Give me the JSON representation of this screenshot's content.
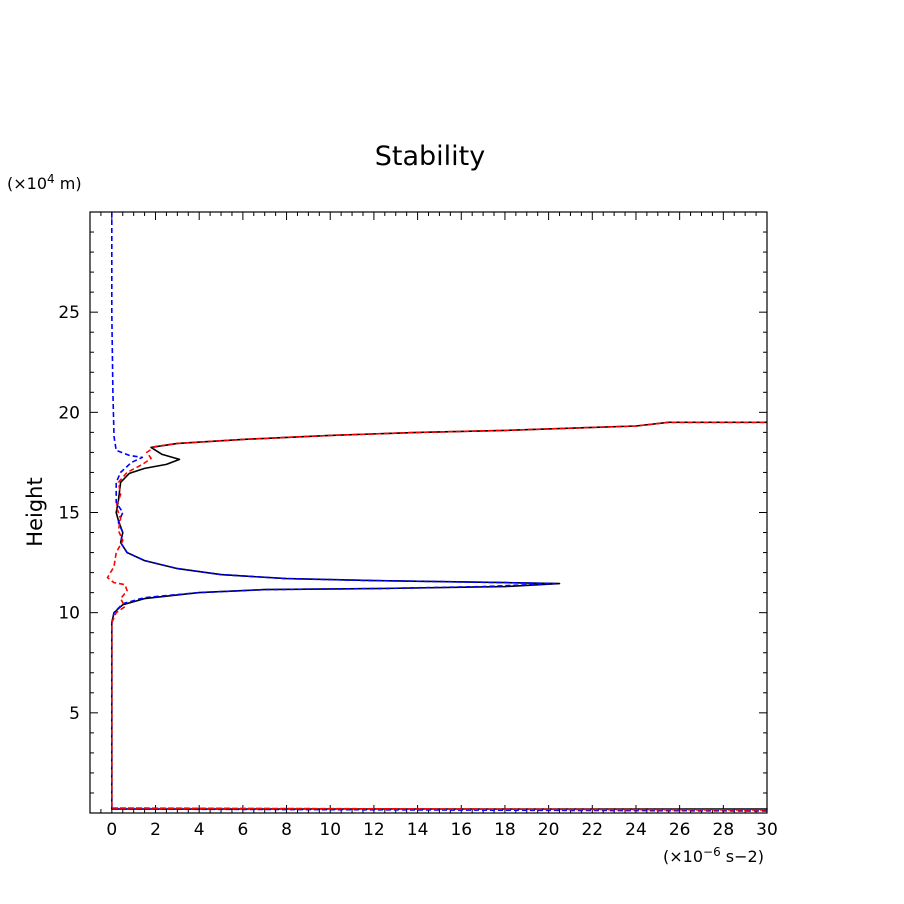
{
  "chart_data": {
    "type": "line",
    "title": "Stability",
    "ylabel": "Height",
    "xlabel": "",
    "x_unit_prefix": "(×10",
    "x_unit_exp": "−6",
    "x_unit_suffix": " s−2)",
    "y_unit_prefix": "(×10",
    "y_unit_exp": "4",
    "y_unit_suffix": " m)",
    "xlim": [
      -1,
      30
    ],
    "ylim": [
      0,
      30
    ],
    "x_ticks": [
      0,
      2,
      4,
      6,
      8,
      10,
      12,
      14,
      16,
      18,
      20,
      22,
      24,
      26,
      28,
      30
    ],
    "x_tick_labels": [
      "0",
      "2",
      "4",
      "6",
      "8",
      "10",
      "12",
      "14",
      "16",
      "18",
      "20",
      "22",
      "24",
      "26",
      "28",
      "30"
    ],
    "y_ticks": [
      5,
      10,
      15,
      20,
      25
    ],
    "y_tick_labels": [
      "5",
      "10",
      "15",
      "20",
      "25"
    ],
    "grid": false,
    "series": [
      {
        "color": "#000000",
        "style": "solid",
        "points": [
          [
            0.0,
            0.2
          ],
          [
            30,
            0.2
          ],
          [
            0.0,
            0.2
          ],
          [
            0.0,
            9.5
          ],
          [
            0.1,
            10.0
          ],
          [
            0.5,
            10.4
          ],
          [
            1.5,
            10.7
          ],
          [
            4,
            11.0
          ],
          [
            7,
            11.15
          ],
          [
            12,
            11.2
          ],
          [
            18,
            11.3
          ],
          [
            20.5,
            11.45
          ],
          [
            18,
            11.5
          ],
          [
            12,
            11.6
          ],
          [
            8,
            11.7
          ],
          [
            5,
            11.9
          ],
          [
            3,
            12.2
          ],
          [
            1.5,
            12.6
          ],
          [
            0.7,
            13.0
          ],
          [
            0.4,
            13.5
          ],
          [
            0.5,
            14.0
          ],
          [
            0.3,
            14.6
          ],
          [
            0.2,
            15.0
          ],
          [
            0.3,
            15.6
          ],
          [
            0.4,
            16.5
          ],
          [
            0.8,
            16.95
          ],
          [
            1.5,
            17.2
          ],
          [
            2.5,
            17.4
          ],
          [
            3.1,
            17.65
          ],
          [
            2.3,
            17.9
          ],
          [
            1.8,
            18.25
          ],
          [
            3,
            18.45
          ],
          [
            6,
            18.65
          ],
          [
            10,
            18.85
          ],
          [
            14,
            19.0
          ],
          [
            18,
            19.1
          ],
          [
            22,
            19.25
          ],
          [
            24,
            19.32
          ],
          [
            25.5,
            19.5
          ],
          [
            30,
            19.5
          ]
        ]
      },
      {
        "color": "#0000ff",
        "style": "dashed",
        "points": [
          [
            0.0,
            30.0
          ],
          [
            0.0,
            25.0
          ],
          [
            0.05,
            21.0
          ],
          [
            0.1,
            18.8
          ],
          [
            0.2,
            18.1
          ],
          [
            0.8,
            17.85
          ],
          [
            1.4,
            17.75
          ],
          [
            0.9,
            17.5
          ],
          [
            0.4,
            17.0
          ],
          [
            0.2,
            16.5
          ],
          [
            0.2,
            15.5
          ],
          [
            0.5,
            15.0
          ],
          [
            0.3,
            14.5
          ],
          [
            0.5,
            14.0
          ],
          [
            0.4,
            13.5
          ],
          [
            0.7,
            13.0
          ],
          [
            1.5,
            12.6
          ],
          [
            3,
            12.2
          ],
          [
            5,
            11.9
          ],
          [
            8,
            11.7
          ],
          [
            12,
            11.6
          ],
          [
            18,
            11.5
          ],
          [
            20.3,
            11.45
          ],
          [
            17,
            11.3
          ],
          [
            12,
            11.2
          ],
          [
            7,
            11.15
          ],
          [
            4,
            11.0
          ],
          [
            1.5,
            10.75
          ],
          [
            0.5,
            10.45
          ],
          [
            0.1,
            10.0
          ],
          [
            0.0,
            9.5
          ],
          [
            0.0,
            0.2
          ],
          [
            30,
            0.1
          ]
        ]
      },
      {
        "color": "#ff0000",
        "style": "dashed",
        "points": [
          [
            0.0,
            0.25
          ],
          [
            30,
            0.15
          ],
          [
            0.0,
            0.25
          ],
          [
            0.0,
            9.5
          ],
          [
            0.2,
            10.0
          ],
          [
            0.6,
            10.3
          ],
          [
            0.4,
            10.7
          ],
          [
            0.7,
            11.1
          ],
          [
            0.6,
            11.4
          ],
          [
            0.1,
            11.5
          ],
          [
            -0.2,
            11.75
          ],
          [
            0.1,
            12.3
          ],
          [
            0.2,
            13.0
          ],
          [
            0.5,
            13.6
          ],
          [
            0.3,
            14.1
          ],
          [
            0.4,
            14.7
          ],
          [
            0.2,
            15.3
          ],
          [
            0.4,
            15.9
          ],
          [
            0.3,
            16.5
          ],
          [
            0.7,
            17.0
          ],
          [
            1.4,
            17.4
          ],
          [
            1.8,
            17.7
          ],
          [
            1.6,
            18.0
          ],
          [
            2.0,
            18.3
          ],
          [
            3,
            18.45
          ],
          [
            6,
            18.65
          ],
          [
            10,
            18.85
          ],
          [
            14,
            19.0
          ],
          [
            18,
            19.1
          ],
          [
            22,
            19.25
          ],
          [
            24,
            19.32
          ],
          [
            25.5,
            19.5
          ],
          [
            30,
            19.5
          ]
        ]
      }
    ]
  }
}
